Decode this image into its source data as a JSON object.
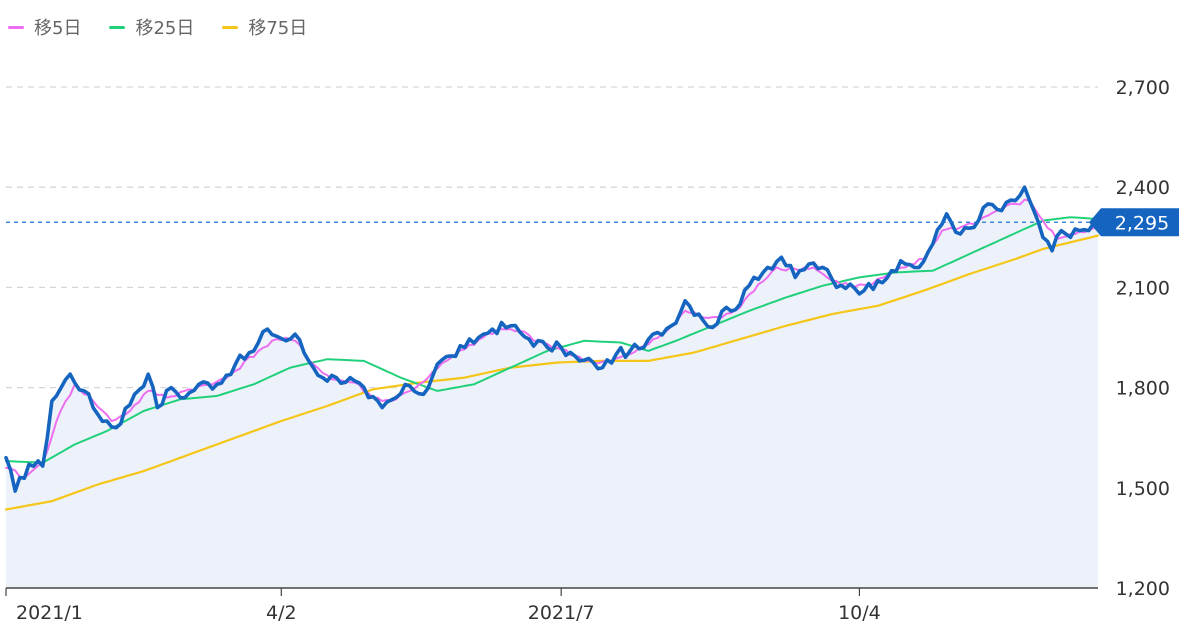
{
  "legend": [
    {
      "label": "移5日",
      "color": "#ee6ef2"
    },
    {
      "label": "移25日",
      "color": "#21d07a"
    },
    {
      "label": "移75日",
      "color": "#f5c518"
    }
  ],
  "current_price_label": "2,295",
  "chart_data": {
    "type": "line",
    "title": "",
    "ylim": [
      1200,
      2700
    ],
    "yticks": [
      {
        "value": 2700,
        "label": "2,700"
      },
      {
        "value": 2400,
        "label": "2,400"
      },
      {
        "value": 2100,
        "label": "2,100"
      },
      {
        "value": 1800,
        "label": "1,800"
      },
      {
        "value": 1500,
        "label": "1,500"
      },
      {
        "value": 1200,
        "label": "1,200"
      }
    ],
    "xticks": [
      {
        "index": 0,
        "label": "2021/1"
      },
      {
        "index": 60,
        "label": "4/2"
      },
      {
        "index": 121,
        "label": "2021/7"
      },
      {
        "index": 186,
        "label": "10/4"
      }
    ],
    "grid": "horizontal-dashed",
    "current_price": 2295,
    "series": [
      {
        "name": "",
        "color": "#1565c0",
        "area_fill": "#edf2fa",
        "anchors": [
          [
            0,
            1590
          ],
          [
            2,
            1490
          ],
          [
            5,
            1570
          ],
          [
            8,
            1565
          ],
          [
            10,
            1760
          ],
          [
            14,
            1840
          ],
          [
            17,
            1790
          ],
          [
            20,
            1720
          ],
          [
            24,
            1680
          ],
          [
            28,
            1780
          ],
          [
            31,
            1840
          ],
          [
            33,
            1740
          ],
          [
            36,
            1800
          ],
          [
            39,
            1770
          ],
          [
            42,
            1810
          ],
          [
            46,
            1810
          ],
          [
            50,
            1870
          ],
          [
            54,
            1910
          ],
          [
            57,
            1975
          ],
          [
            61,
            1940
          ],
          [
            63,
            1960
          ],
          [
            66,
            1880
          ],
          [
            69,
            1830
          ],
          [
            72,
            1830
          ],
          [
            76,
            1820
          ],
          [
            79,
            1770
          ],
          [
            82,
            1740
          ],
          [
            85,
            1770
          ],
          [
            88,
            1805
          ],
          [
            91,
            1780
          ],
          [
            94,
            1870
          ],
          [
            97,
            1895
          ],
          [
            100,
            1920
          ],
          [
            103,
            1950
          ],
          [
            106,
            1975
          ],
          [
            110,
            1985
          ],
          [
            114,
            1945
          ],
          [
            118,
            1920
          ],
          [
            121,
            1920
          ],
          [
            125,
            1880
          ],
          [
            128,
            1875
          ],
          [
            130,
            1860
          ],
          [
            133,
            1900
          ],
          [
            136,
            1910
          ],
          [
            139,
            1920
          ],
          [
            142,
            1965
          ],
          [
            145,
            1985
          ],
          [
            148,
            2060
          ],
          [
            151,
            2020
          ],
          [
            154,
            1980
          ],
          [
            157,
            2040
          ],
          [
            160,
            2050
          ],
          [
            163,
            2130
          ],
          [
            166,
            2160
          ],
          [
            169,
            2190
          ],
          [
            172,
            2130
          ],
          [
            175,
            2170
          ],
          [
            178,
            2160
          ],
          [
            181,
            2100
          ],
          [
            184,
            2110
          ],
          [
            187,
            2090
          ],
          [
            190,
            2120
          ],
          [
            193,
            2150
          ],
          [
            196,
            2170
          ],
          [
            199,
            2160
          ],
          [
            202,
            2230
          ],
          [
            205,
            2320
          ],
          [
            208,
            2260
          ],
          [
            211,
            2280
          ],
          [
            214,
            2350
          ],
          [
            217,
            2330
          ],
          [
            220,
            2360
          ],
          [
            222,
            2400
          ],
          [
            224,
            2330
          ],
          [
            226,
            2250
          ],
          [
            228,
            2210
          ],
          [
            230,
            2270
          ],
          [
            232,
            2250
          ],
          [
            234,
            2270
          ],
          [
            236,
            2270
          ],
          [
            238,
            2295
          ]
        ]
      },
      {
        "name": "移5日",
        "color": "#ee6ef2",
        "anchors": [
          [
            0,
            1560
          ],
          [
            4,
            1530
          ],
          [
            8,
            1575
          ],
          [
            11,
            1700
          ],
          [
            15,
            1810
          ],
          [
            19,
            1760
          ],
          [
            23,
            1700
          ],
          [
            27,
            1730
          ],
          [
            31,
            1790
          ],
          [
            35,
            1770
          ],
          [
            40,
            1795
          ],
          [
            45,
            1810
          ],
          [
            50,
            1850
          ],
          [
            55,
            1910
          ],
          [
            59,
            1945
          ],
          [
            63,
            1940
          ],
          [
            67,
            1870
          ],
          [
            71,
            1825
          ],
          [
            76,
            1815
          ],
          [
            80,
            1770
          ],
          [
            84,
            1760
          ],
          [
            88,
            1790
          ],
          [
            92,
            1830
          ],
          [
            96,
            1880
          ],
          [
            100,
            1915
          ],
          [
            104,
            1950
          ],
          [
            108,
            1975
          ],
          [
            112,
            1970
          ],
          [
            116,
            1940
          ],
          [
            120,
            1920
          ],
          [
            124,
            1895
          ],
          [
            128,
            1875
          ],
          [
            132,
            1880
          ],
          [
            136,
            1900
          ],
          [
            140,
            1930
          ],
          [
            144,
            1970
          ],
          [
            148,
            2030
          ],
          [
            152,
            2010
          ],
          [
            156,
            2010
          ],
          [
            160,
            2040
          ],
          [
            164,
            2110
          ],
          [
            168,
            2160
          ],
          [
            172,
            2155
          ],
          [
            176,
            2160
          ],
          [
            180,
            2120
          ],
          [
            184,
            2105
          ],
          [
            188,
            2105
          ],
          [
            192,
            2135
          ],
          [
            196,
            2160
          ],
          [
            200,
            2185
          ],
          [
            204,
            2270
          ],
          [
            208,
            2280
          ],
          [
            212,
            2300
          ],
          [
            216,
            2330
          ],
          [
            220,
            2350
          ],
          [
            223,
            2360
          ],
          [
            226,
            2300
          ],
          [
            229,
            2245
          ],
          [
            232,
            2260
          ],
          [
            235,
            2265
          ],
          [
            238,
            2285
          ]
        ]
      },
      {
        "name": "移25日",
        "color": "#21d07a",
        "anchors": [
          [
            0,
            1580
          ],
          [
            8,
            1575
          ],
          [
            15,
            1630
          ],
          [
            22,
            1670
          ],
          [
            30,
            1730
          ],
          [
            38,
            1765
          ],
          [
            46,
            1775
          ],
          [
            54,
            1810
          ],
          [
            62,
            1860
          ],
          [
            70,
            1885
          ],
          [
            78,
            1880
          ],
          [
            86,
            1830
          ],
          [
            94,
            1790
          ],
          [
            102,
            1810
          ],
          [
            110,
            1860
          ],
          [
            118,
            1910
          ],
          [
            126,
            1940
          ],
          [
            134,
            1935
          ],
          [
            140,
            1910
          ],
          [
            146,
            1940
          ],
          [
            154,
            1985
          ],
          [
            162,
            2030
          ],
          [
            170,
            2070
          ],
          [
            178,
            2105
          ],
          [
            186,
            2130
          ],
          [
            194,
            2145
          ],
          [
            202,
            2150
          ],
          [
            210,
            2200
          ],
          [
            218,
            2250
          ],
          [
            226,
            2300
          ],
          [
            232,
            2310
          ],
          [
            238,
            2305
          ]
        ]
      },
      {
        "name": "移75日",
        "color": "#f5c518",
        "anchors": [
          [
            0,
            1435
          ],
          [
            10,
            1460
          ],
          [
            20,
            1510
          ],
          [
            30,
            1550
          ],
          [
            40,
            1600
          ],
          [
            50,
            1650
          ],
          [
            60,
            1700
          ],
          [
            70,
            1745
          ],
          [
            80,
            1795
          ],
          [
            90,
            1815
          ],
          [
            100,
            1830
          ],
          [
            110,
            1860
          ],
          [
            120,
            1875
          ],
          [
            130,
            1880
          ],
          [
            140,
            1880
          ],
          [
            150,
            1905
          ],
          [
            160,
            1945
          ],
          [
            170,
            1985
          ],
          [
            180,
            2020
          ],
          [
            190,
            2045
          ],
          [
            200,
            2090
          ],
          [
            210,
            2140
          ],
          [
            220,
            2185
          ],
          [
            226,
            2215
          ],
          [
            232,
            2235
          ],
          [
            238,
            2255
          ]
        ]
      }
    ]
  }
}
